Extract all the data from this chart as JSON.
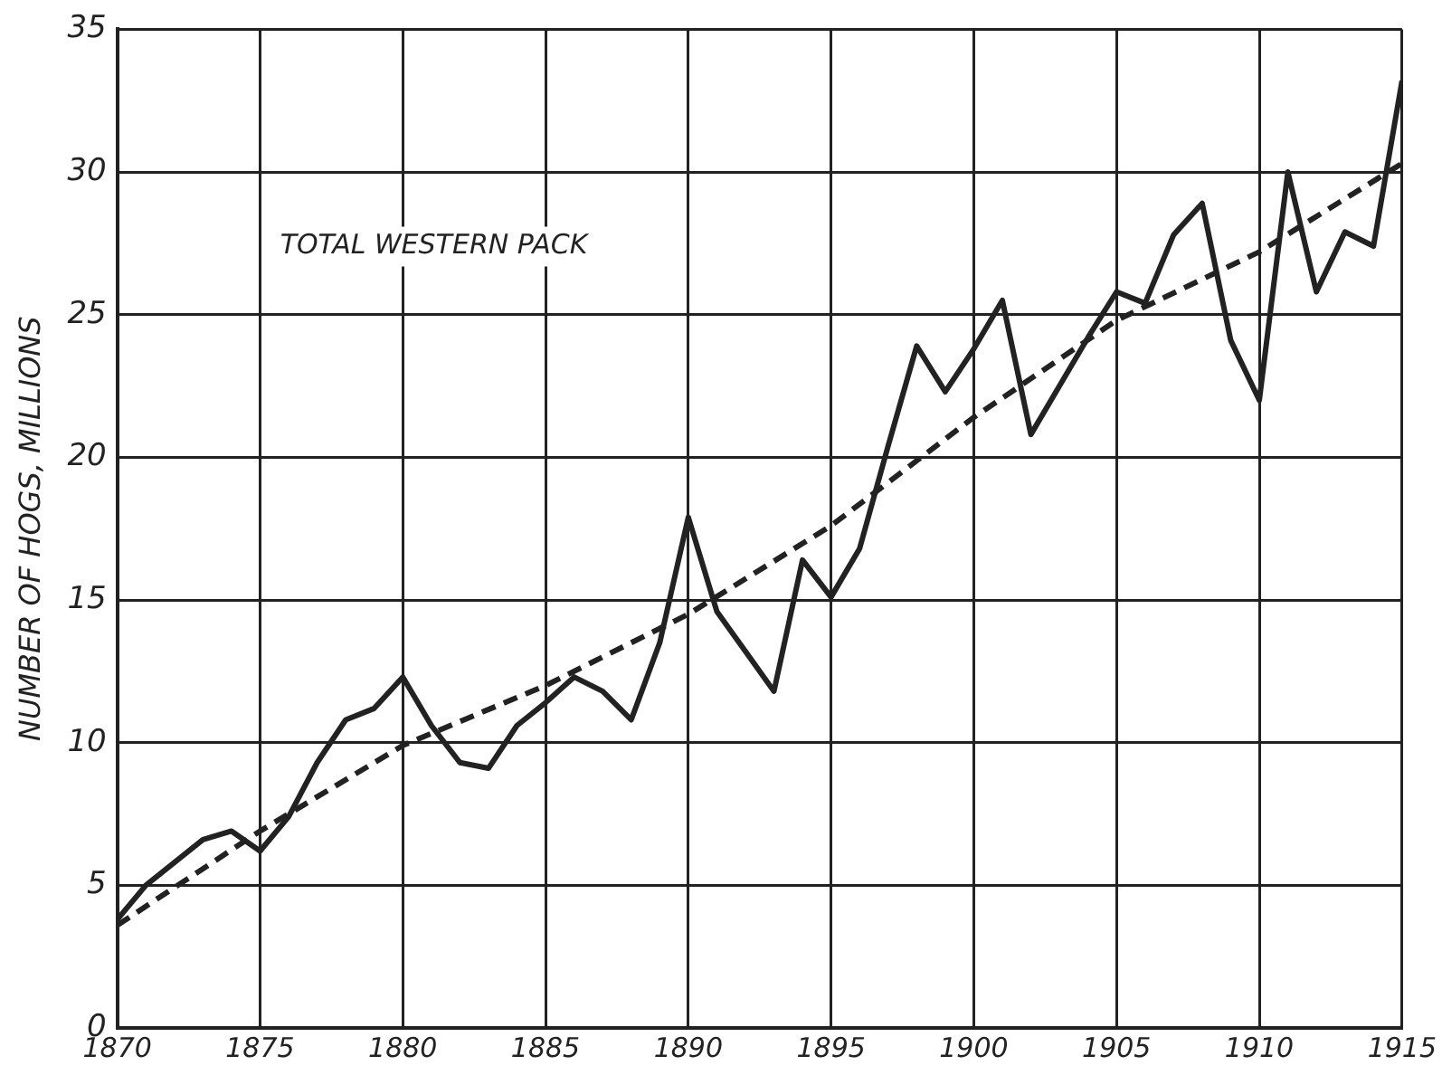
{
  "chart_data": {
    "type": "line",
    "ylabel": "NUMBER OF HOGS, MILLIONS",
    "annotations": [
      "TOTAL WESTERN PACK"
    ],
    "xlim": [
      1870,
      1915
    ],
    "xticks": [
      1870,
      1875,
      1880,
      1885,
      1890,
      1895,
      1900,
      1905,
      1910,
      1915
    ],
    "ylim": [
      0,
      35
    ],
    "yticks": [
      0,
      5,
      10,
      15,
      20,
      25,
      30,
      35
    ],
    "grid": true,
    "legend": false,
    "marker": "none",
    "series": [
      {
        "color": "#222222",
        "line_style": "solid",
        "x": [
          1870,
          1871,
          1872,
          1873,
          1874,
          1875,
          1876,
          1877,
          1878,
          1879,
          1880,
          1881,
          1882,
          1883,
          1884,
          1885,
          1886,
          1887,
          1888,
          1889,
          1890,
          1891,
          1892,
          1893,
          1894,
          1895,
          1896,
          1897,
          1898,
          1899,
          1900,
          1901,
          1902,
          1903,
          1904,
          1905,
          1906,
          1907,
          1908,
          1909,
          1910,
          1911,
          1912,
          1913,
          1914,
          1915
        ],
        "values": [
          3.8,
          5.0,
          5.8,
          6.6,
          6.9,
          6.2,
          7.4,
          9.3,
          10.8,
          11.2,
          12.3,
          10.6,
          9.3,
          9.1,
          10.6,
          11.4,
          12.3,
          11.8,
          10.8,
          13.5,
          17.9,
          14.6,
          13.2,
          11.8,
          16.4,
          15.1,
          16.8,
          20.4,
          23.9,
          22.3,
          23.8,
          25.5,
          20.8,
          22.5,
          24.2,
          25.8,
          25.4,
          27.8,
          28.9,
          24.1,
          22.0,
          30.0,
          25.8,
          27.9,
          27.4,
          33.2
        ]
      },
      {
        "color": "#222222",
        "line_style": "dashed",
        "x": [
          1870,
          1875,
          1880,
          1885,
          1890,
          1895,
          1900,
          1905,
          1910,
          1915
        ],
        "values": [
          3.6,
          6.9,
          9.9,
          12.0,
          14.5,
          17.6,
          21.4,
          24.8,
          27.2,
          30.3
        ]
      }
    ]
  }
}
